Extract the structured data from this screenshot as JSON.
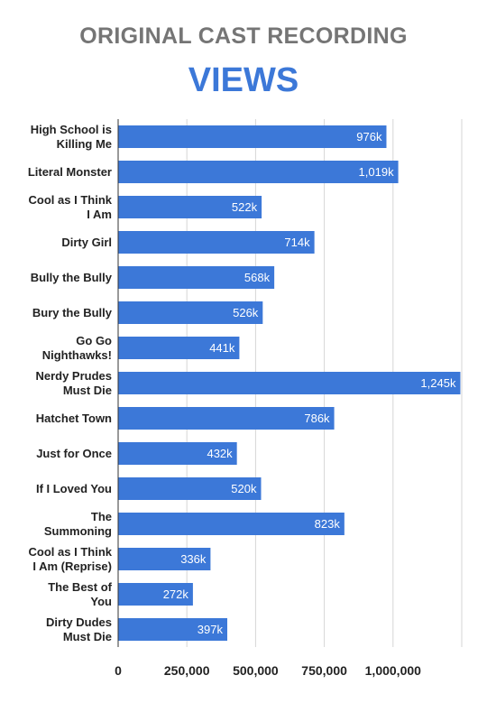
{
  "chart_data": {
    "type": "bar",
    "orientation": "horizontal",
    "title_line1": "ORIGINAL CAST RECORDING",
    "title_line2": "VIEWS",
    "categories": [
      [
        "High School is",
        "Killing Me"
      ],
      [
        "Literal Monster"
      ],
      [
        "Cool as I Think",
        "I Am"
      ],
      [
        "Dirty Girl"
      ],
      [
        "Bully the Bully"
      ],
      [
        "Bury the Bully"
      ],
      [
        "Go Go",
        "Nighthawks!"
      ],
      [
        "Nerdy Prudes",
        "Must Die"
      ],
      [
        "Hatchet Town"
      ],
      [
        "Just for Once"
      ],
      [
        "If I Loved You"
      ],
      [
        "The",
        "Summoning"
      ],
      [
        "Cool as I Think",
        "I Am (Reprise)"
      ],
      [
        "The Best of",
        "You"
      ],
      [
        "Dirty Dudes",
        "Must Die"
      ]
    ],
    "values": [
      976000,
      1019000,
      522000,
      714000,
      568000,
      526000,
      441000,
      1245000,
      786000,
      432000,
      520000,
      823000,
      336000,
      272000,
      397000
    ],
    "data_labels": [
      "976k",
      "1,019k",
      "522k",
      "714k",
      "568k",
      "526k",
      "441k",
      "1,245k",
      "786k",
      "432k",
      "520k",
      "823k",
      "336k",
      "272k",
      "397k"
    ],
    "x_ticks": [
      0,
      250000,
      500000,
      750000,
      1000000
    ],
    "x_tick_labels": [
      "0",
      "250,000",
      "500,000",
      "750,000",
      "1,000,000"
    ],
    "xlim": [
      0,
      1250000
    ],
    "grid": true,
    "bar_color": "#3c78d8",
    "title_color_line1": "#757575",
    "title_color_line2": "#3c78d8"
  }
}
